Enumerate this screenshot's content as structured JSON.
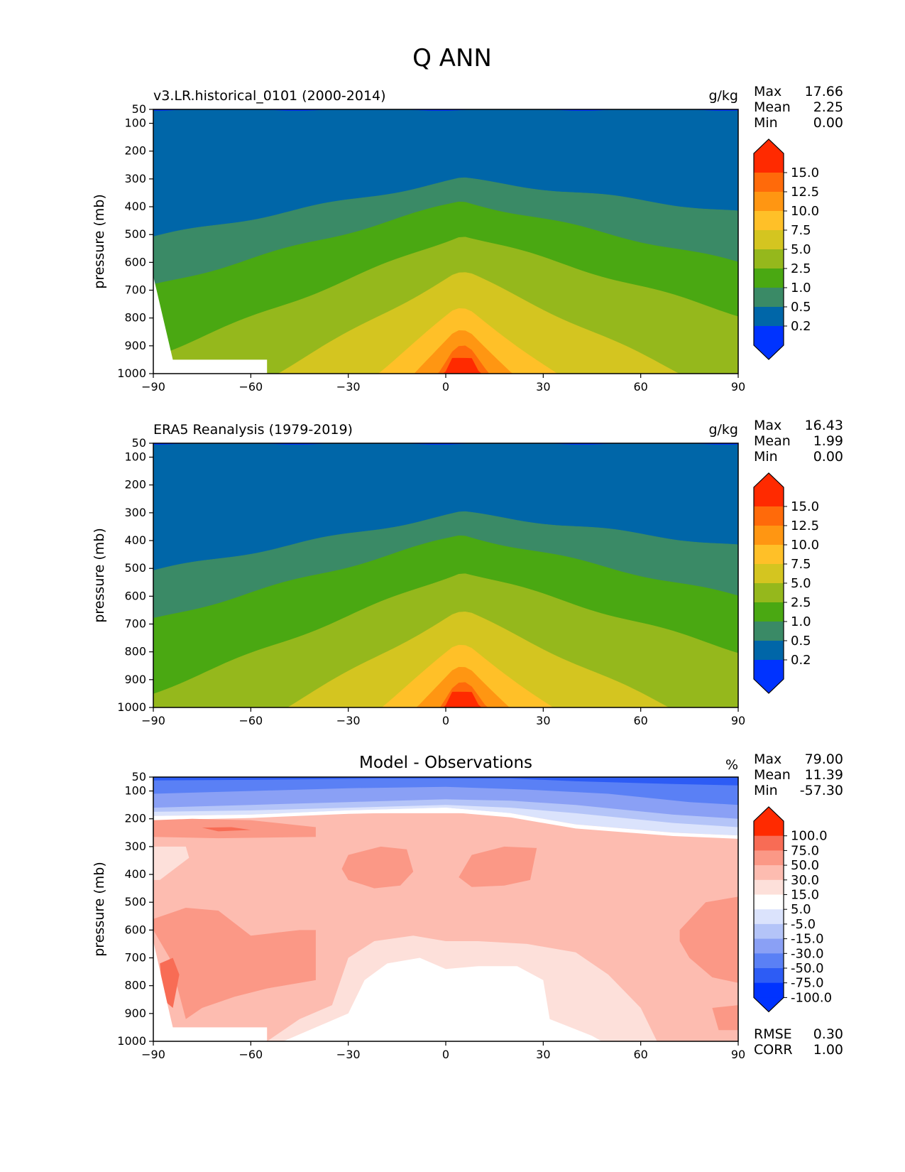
{
  "title": "Q ANN",
  "colors": {
    "q_levels": [
      "#0033ff",
      "#0066a8",
      "#3a8a66",
      "#4aa812",
      "#95b81c",
      "#d4c520",
      "#ffc028",
      "#ff9612",
      "#ff6a0a",
      "#ff2a00"
    ],
    "diff_levels": [
      "#0033ff",
      "#2d5cf5",
      "#5a80f5",
      "#8aa0f5",
      "#b4c4f8",
      "#dbe3fc",
      "#ffffff",
      "#fde0da",
      "#fdbcb0",
      "#fb9886",
      "#f86c55",
      "#ff2a00"
    ]
  },
  "chart_data": [
    {
      "type": "contour",
      "panel_title": "v3.LR.historical_0101 (2000-2014)",
      "units": "g/kg",
      "xlabel": "",
      "ylabel": "pressure (mb)",
      "xlim": [
        -90,
        90
      ],
      "ylim": [
        1000,
        50
      ],
      "xticks": [
        "−90",
        "−60",
        "−30",
        "0",
        "30",
        "60",
        "90"
      ],
      "yticks": [
        "50",
        "100",
        "200",
        "300",
        "400",
        "500",
        "600",
        "700",
        "800",
        "900",
        "1000"
      ],
      "stats": [
        {
          "label": "Max",
          "value": "17.66"
        },
        {
          "label": "Mean",
          "value": "2.25"
        },
        {
          "label": "Min",
          "value": "0.00"
        }
      ],
      "colorbar_labels": [
        "15.0",
        "12.5",
        "10.0",
        "7.5",
        "5.0",
        "2.5",
        "1.0",
        "0.5",
        "0.2"
      ],
      "peak_pressure_by_level": [
        50,
        300,
        380,
        500,
        640,
        770,
        840,
        900,
        950
      ],
      "missing_region": [
        [
          -90,
          650
        ],
        [
          -85,
          900
        ],
        [
          -84,
          950
        ],
        [
          -55,
          950
        ],
        [
          -55,
          1000
        ],
        [
          -90,
          1000
        ]
      ]
    },
    {
      "type": "contour",
      "panel_title": "ERA5 Reanalysis (1979-2019)",
      "units": "g/kg",
      "xlabel": "",
      "ylabel": "pressure (mb)",
      "xlim": [
        -90,
        90
      ],
      "ylim": [
        1000,
        50
      ],
      "xticks": [
        "−90",
        "−60",
        "−30",
        "0",
        "30",
        "60",
        "90"
      ],
      "yticks": [
        "50",
        "100",
        "200",
        "300",
        "400",
        "500",
        "600",
        "700",
        "800",
        "900",
        "1000"
      ],
      "stats": [
        {
          "label": "Max",
          "value": "16.43"
        },
        {
          "label": "Mean",
          "value": "1.99"
        },
        {
          "label": "Min",
          "value": "0.00"
        }
      ],
      "colorbar_labels": [
        "15.0",
        "12.5",
        "10.0",
        "7.5",
        "5.0",
        "2.5",
        "1.0",
        "0.5",
        "0.2"
      ],
      "peak_pressure_by_level": [
        50,
        300,
        380,
        510,
        660,
        780,
        850,
        910,
        950
      ]
    },
    {
      "type": "contour",
      "panel_title": "Model - Observations",
      "units": "%",
      "xlabel": "",
      "ylabel": "pressure (mb)",
      "xlim": [
        -90,
        90
      ],
      "ylim": [
        1000,
        50
      ],
      "xticks": [
        "−90",
        "−60",
        "−30",
        "0",
        "30",
        "60",
        "90"
      ],
      "yticks": [
        "50",
        "100",
        "200",
        "300",
        "400",
        "500",
        "600",
        "700",
        "800",
        "900",
        "1000"
      ],
      "stats": [
        {
          "label": "Max",
          "value": "79.00"
        },
        {
          "label": "Mean",
          "value": "11.39"
        },
        {
          "label": "Min",
          "value": "-57.30"
        }
      ],
      "colorbar_labels": [
        "100.0",
        "75.0",
        "50.0",
        "30.0",
        "15.0",
        "5.0",
        "-5.0",
        "-15.0",
        "-30.0",
        "-50.0",
        "-75.0",
        "-100.0"
      ],
      "footer_stats": [
        {
          "label": "RMSE",
          "value": "0.30"
        },
        {
          "label": "CORR",
          "value": "1.00"
        }
      ]
    }
  ]
}
